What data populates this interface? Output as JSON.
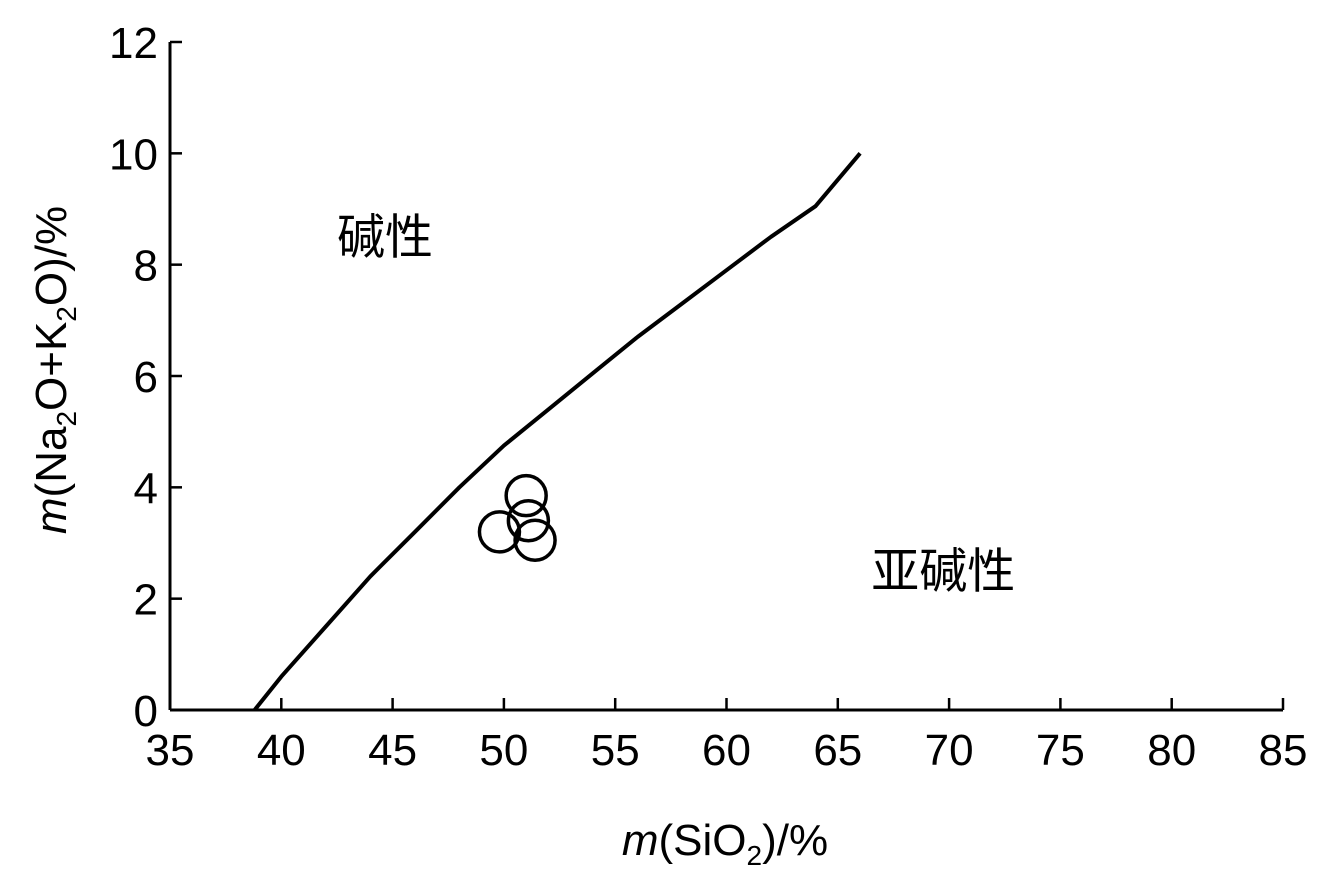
{
  "chart_data": {
    "type": "scatter",
    "xlabel": {
      "prefix": "m",
      "main": "(SiO",
      "sub": "2",
      "suffix": ")/%"
    },
    "ylabel": {
      "prefix": "m",
      "part1": "(Na",
      "sub1": "2",
      "part2": "O+K",
      "sub2": "2",
      "part3": "O)/%"
    },
    "xlim": [
      35,
      85
    ],
    "ylim": [
      0,
      12
    ],
    "xticks": [
      35,
      40,
      45,
      50,
      55,
      60,
      65,
      70,
      75,
      80,
      85
    ],
    "yticks": [
      0,
      2,
      4,
      6,
      8,
      10,
      12
    ],
    "grid": false,
    "divider_line": {
      "x": [
        38.8,
        40,
        42,
        44,
        46,
        48,
        50,
        52,
        54,
        56,
        58,
        60,
        62,
        64,
        66
      ],
      "y": [
        0,
        0.6,
        1.5,
        2.4,
        3.2,
        4.0,
        4.75,
        5.4,
        6.05,
        6.7,
        7.3,
        7.9,
        8.5,
        9.05,
        10.0
      ]
    },
    "series": [
      {
        "marker": "open-circle",
        "x": [
          49.8,
          51.0,
          51.1,
          51.4
        ],
        "y": [
          3.2,
          3.85,
          3.4,
          3.05
        ]
      }
    ],
    "annotations": [
      {
        "text": "碱性",
        "x": 42.5,
        "y": 8.2
      },
      {
        "text": "亚碱性",
        "x": 66.5,
        "y": 2.2
      }
    ]
  }
}
